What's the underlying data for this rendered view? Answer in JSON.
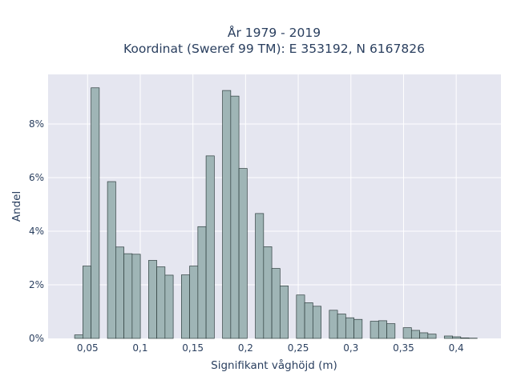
{
  "chart_data": {
    "type": "bar",
    "title_lines": [
      "År 1979 - 2019",
      "Koordinat (Sweref 99 TM): E 353192, N 6167826"
    ],
    "xlabel": "Signifikant våghöjd (m)",
    "ylabel": "Andel",
    "xlim": [
      0.0125,
      0.4425
    ],
    "ylim": [
      0,
      0.0985
    ],
    "x_ticks": [
      0.05,
      0.1,
      0.15,
      0.2,
      0.25,
      0.3,
      0.35,
      0.4
    ],
    "x_tick_labels": [
      "0,05",
      "0,1",
      "0,15",
      "0,2",
      "0,25",
      "0,3",
      "0,35",
      "0,4"
    ],
    "y_ticks": [
      0,
      0.02,
      0.04,
      0.06,
      0.08
    ],
    "y_tick_labels": [
      "0%",
      "2%",
      "4%",
      "6%",
      "8%"
    ],
    "bin_width": 0.0078,
    "bins": [
      {
        "x": 0.0416,
        "value": 0.0013
      },
      {
        "x": 0.0494,
        "value": 0.027
      },
      {
        "x": 0.0572,
        "value": 0.0935
      },
      {
        "x": 0.0728,
        "value": 0.0585
      },
      {
        "x": 0.0806,
        "value": 0.0341
      },
      {
        "x": 0.0884,
        "value": 0.0316
      },
      {
        "x": 0.0962,
        "value": 0.0314
      },
      {
        "x": 0.1118,
        "value": 0.0291
      },
      {
        "x": 0.1196,
        "value": 0.0267
      },
      {
        "x": 0.1274,
        "value": 0.0236
      },
      {
        "x": 0.143,
        "value": 0.0237
      },
      {
        "x": 0.1508,
        "value": 0.027
      },
      {
        "x": 0.1586,
        "value": 0.0417
      },
      {
        "x": 0.1664,
        "value": 0.0681
      },
      {
        "x": 0.182,
        "value": 0.0925
      },
      {
        "x": 0.1898,
        "value": 0.0904
      },
      {
        "x": 0.1976,
        "value": 0.0634
      },
      {
        "x": 0.2132,
        "value": 0.0466
      },
      {
        "x": 0.221,
        "value": 0.0342
      },
      {
        "x": 0.2288,
        "value": 0.0261
      },
      {
        "x": 0.2366,
        "value": 0.0196
      },
      {
        "x": 0.2522,
        "value": 0.0162
      },
      {
        "x": 0.26,
        "value": 0.0133
      },
      {
        "x": 0.2678,
        "value": 0.012
      },
      {
        "x": 0.2834,
        "value": 0.0105
      },
      {
        "x": 0.2912,
        "value": 0.0091
      },
      {
        "x": 0.299,
        "value": 0.0077
      },
      {
        "x": 0.3068,
        "value": 0.0071
      },
      {
        "x": 0.3224,
        "value": 0.0064
      },
      {
        "x": 0.3302,
        "value": 0.0066
      },
      {
        "x": 0.338,
        "value": 0.0055
      },
      {
        "x": 0.3536,
        "value": 0.004
      },
      {
        "x": 0.3614,
        "value": 0.003
      },
      {
        "x": 0.3692,
        "value": 0.0021
      },
      {
        "x": 0.377,
        "value": 0.0016
      },
      {
        "x": 0.3926,
        "value": 0.0009
      },
      {
        "x": 0.4004,
        "value": 0.0006
      },
      {
        "x": 0.4082,
        "value": 0.0002
      },
      {
        "x": 0.416,
        "value": 0.0001
      }
    ],
    "grid": true,
    "colors": {
      "bar_fill": "#9fb5b6",
      "bar_stroke": "#2f3f3f",
      "plot_background": "#e5e6f0",
      "grid": "#ffffff"
    }
  }
}
